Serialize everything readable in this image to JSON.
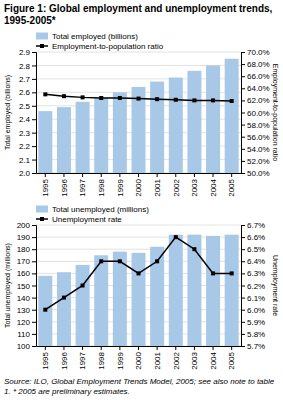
{
  "chart_data": [
    {
      "type": "bar",
      "title": "Figure 1: Global employment and unemployment trends, 1995-2005*",
      "categories": [
        "1995",
        "1996",
        "1997",
        "1998",
        "1999",
        "2000",
        "2001",
        "2002",
        "2003",
        "2004",
        "2005"
      ],
      "series": [
        {
          "name": "Total employed (billions)",
          "type": "bar",
          "color": "#a8c8e8",
          "values": [
            2.46,
            2.49,
            2.53,
            2.56,
            2.6,
            2.64,
            2.68,
            2.71,
            2.76,
            2.8,
            2.85
          ]
        },
        {
          "name": "Employment-to-population ratio",
          "type": "line",
          "axis": "y2",
          "color": "#000000",
          "marker": "square",
          "values": [
            63.0,
            62.7,
            62.5,
            62.4,
            62.4,
            62.3,
            62.2,
            62.1,
            62.0,
            62.0,
            61.9
          ]
        }
      ],
      "ylabel": "Total employed (billions)",
      "y2label": "Employment-to-population ratio",
      "ylim": [
        2.0,
        2.9
      ],
      "yticks": [
        {
          "value": 2.0,
          "label": "2.0"
        },
        2.1,
        2.2,
        2.3,
        2.4,
        2.5,
        2.6,
        2.7,
        2.8,
        2.9
      ],
      "y2lim": [
        50.0,
        70.0
      ],
      "y2ticks": [
        {
          "value": 50.0,
          "label": "50.0%"
        },
        {
          "value": 52.0,
          "label": "52.0%"
        },
        {
          "value": 54.0,
          "label": "54.0%"
        },
        {
          "value": 56.0,
          "label": "56.0%"
        },
        {
          "value": 58.0,
          "label": "58.0%"
        },
        {
          "value": 60.0,
          "label": "60.0%"
        },
        {
          "value": 62.0,
          "label": "62.0%"
        },
        {
          "value": 64.0,
          "label": "64.0%"
        },
        {
          "value": 66.0,
          "label": "66.0%"
        },
        {
          "value": 68.0,
          "label": "68.0%"
        },
        {
          "value": 70.0,
          "label": "70.0%"
        }
      ],
      "grid": true,
      "legend": "upper left"
    },
    {
      "type": "bar",
      "categories": [
        "1995",
        "1996",
        "1997",
        "1998",
        "1999",
        "2000",
        "2001",
        "2002",
        "2003",
        "2004",
        "2005"
      ],
      "series": [
        {
          "name": "Total unemployed (millions)",
          "type": "bar",
          "color": "#a8c8e8",
          "values": [
            158,
            161,
            167,
            175,
            178,
            177,
            182,
            192,
            192,
            191,
            192
          ]
        },
        {
          "name": "Unemployment rate",
          "type": "line",
          "axis": "y2",
          "color": "#000000",
          "marker": "square",
          "values": [
            6.0,
            6.1,
            6.2,
            6.4,
            6.4,
            6.3,
            6.4,
            6.6,
            6.5,
            6.3,
            6.3
          ]
        }
      ],
      "ylabel": "Total unemployed (millions)",
      "y2label": "Unemployment rate",
      "ylim": [
        100,
        200
      ],
      "yticks": [
        100,
        110,
        120,
        130,
        140,
        150,
        160,
        170,
        180,
        190,
        200
      ],
      "y2lim": [
        5.7,
        6.7
      ],
      "y2ticks": [
        {
          "value": 5.7,
          "label": "5.7%"
        },
        {
          "value": 5.8,
          "label": "5.8%"
        },
        {
          "value": 5.9,
          "label": "5.9%"
        },
        {
          "value": 6.0,
          "label": "6.0%"
        },
        {
          "value": 6.1,
          "label": "6.1%"
        },
        {
          "value": 6.2,
          "label": "6.2%"
        },
        {
          "value": 6.3,
          "label": "6.3%"
        },
        {
          "value": 6.4,
          "label": "6.4%"
        },
        {
          "value": 6.5,
          "label": "6.5%"
        },
        {
          "value": 6.6,
          "label": "6.6%"
        },
        {
          "value": 6.7,
          "label": "6.7%"
        }
      ],
      "grid": true,
      "legend": "upper left",
      "annotations": [
        "Source: ILO, Global Employment Trends Model, 2005; see also note to table 1. * 2005 are preliminary estimates."
      ]
    }
  ]
}
